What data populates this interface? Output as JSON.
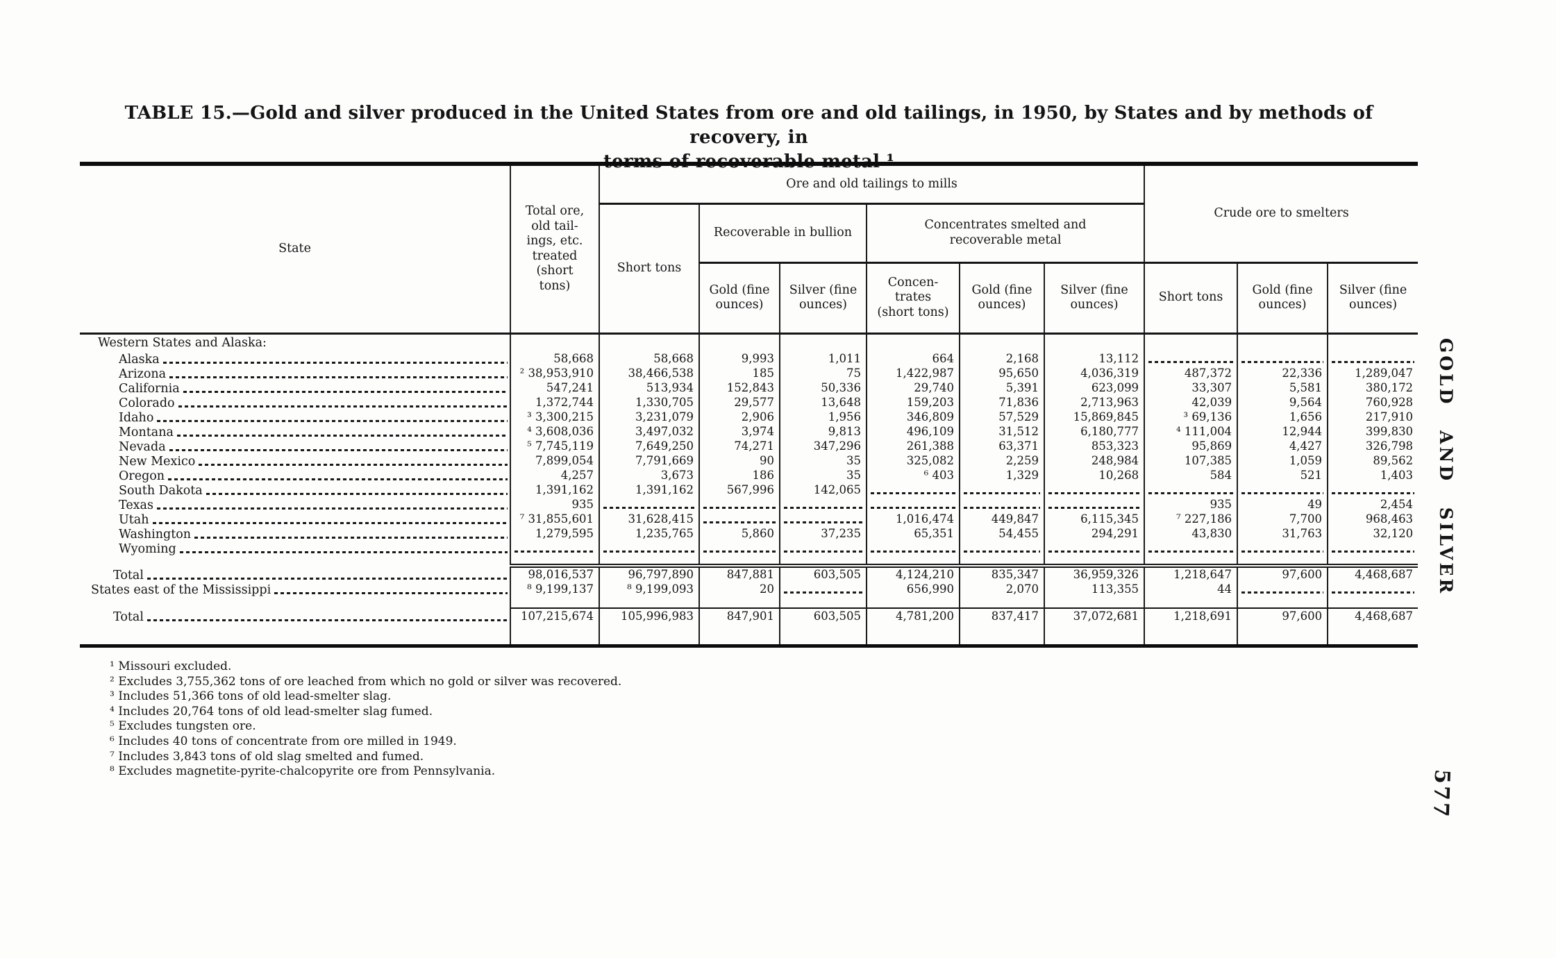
{
  "document": {
    "title_line1": "TABLE 15.—Gold and silver produced in the United States from ore and old tailings, in 1950, by States and by methods of recovery, in",
    "title_line2": "terms of recoverable metal ¹",
    "side_label": "GOLD AND SILVER",
    "page_number": "577"
  },
  "table": {
    "column_groups": {
      "mills": "Ore and old tailings to mills",
      "bullion": "Recoverable in bullion",
      "concentrates": "Concentrates smelted and\nrecoverable metal",
      "crude": "Crude ore to smelters"
    },
    "columns": {
      "state": "State",
      "total_ore": "Total ore,\nold tail-\nings, etc.\ntreated\n(short\ntons)",
      "mills_short_tons": "Short tons",
      "gold_bullion": "Gold (fine\nounces)",
      "silver_bullion": "Silver (fine\nounces)",
      "concentrates": "Concen-\ntrates\n(short tons)",
      "gold_conc": "Gold (fine\nounces)",
      "silver_conc": "Silver (fine\nounces)",
      "crude_short_tons": "Short tons",
      "gold_crude": "Gold (fine\nounces)",
      "silver_crude": "Silver (fine\nounces)"
    },
    "rows": [
      {
        "type": "section",
        "label": "Western States and Alaska:"
      },
      {
        "type": "state",
        "label": "Alaska",
        "cells": [
          "58,668",
          "58,668",
          "9,993",
          "1,011",
          "664",
          "2,168",
          "13,112",
          "----",
          "----",
          "----"
        ]
      },
      {
        "type": "state",
        "label": "Arizona",
        "cells": [
          "² 38,953,910",
          "38,466,538",
          "185",
          "75",
          "1,422,987",
          "95,650",
          "4,036,319",
          "487,372",
          "22,336",
          "1,289,047"
        ]
      },
      {
        "type": "state",
        "label": "California",
        "cells": [
          "547,241",
          "513,934",
          "152,843",
          "50,336",
          "29,740",
          "5,391",
          "623,099",
          "33,307",
          "5,581",
          "380,172"
        ]
      },
      {
        "type": "state",
        "label": "Colorado",
        "cells": [
          "1,372,744",
          "1,330,705",
          "29,577",
          "13,648",
          "159,203",
          "71,836",
          "2,713,963",
          "42,039",
          "9,564",
          "760,928"
        ]
      },
      {
        "type": "state",
        "label": "Idaho",
        "cells": [
          "³ 3,300,215",
          "3,231,079",
          "2,906",
          "1,956",
          "346,809",
          "57,529",
          "15,869,845",
          "³ 69,136",
          "1,656",
          "217,910"
        ]
      },
      {
        "type": "state",
        "label": "Montana",
        "cells": [
          "⁴ 3,608,036",
          "3,497,032",
          "3,974",
          "9,813",
          "496,109",
          "31,512",
          "6,180,777",
          "⁴ 111,004",
          "12,944",
          "399,830"
        ]
      },
      {
        "type": "state",
        "label": "Nevada",
        "cells": [
          "⁵ 7,745,119",
          "7,649,250",
          "74,271",
          "347,296",
          "261,388",
          "63,371",
          "853,323",
          "95,869",
          "4,427",
          "326,798"
        ]
      },
      {
        "type": "state",
        "label": "New Mexico",
        "cells": [
          "7,899,054",
          "7,791,669",
          "90",
          "35",
          "325,082",
          "2,259",
          "248,984",
          "107,385",
          "1,059",
          "89,562"
        ]
      },
      {
        "type": "state",
        "label": "Oregon",
        "cells": [
          "4,257",
          "3,673",
          "186",
          "35",
          "⁶ 403",
          "1,329",
          "10,268",
          "584",
          "521",
          "1,403"
        ]
      },
      {
        "type": "state",
        "label": "South Dakota",
        "cells": [
          "1,391,162",
          "1,391,162",
          "567,996",
          "142,065",
          "----",
          "----",
          "----",
          "----",
          "----",
          "----"
        ]
      },
      {
        "type": "state",
        "label": "Texas",
        "cells": [
          "935",
          "----",
          "----",
          "----",
          "----",
          "----",
          "----",
          "935",
          "49",
          "2,454"
        ]
      },
      {
        "type": "state",
        "label": "Utah",
        "cells": [
          "⁷ 31,855,601",
          "31,628,415",
          "----",
          "----",
          "1,016,474",
          "449,847",
          "6,115,345",
          "⁷ 227,186",
          "7,700",
          "968,463"
        ]
      },
      {
        "type": "state",
        "label": "Washington",
        "cells": [
          "1,279,595",
          "1,235,765",
          "5,860",
          "37,235",
          "65,351",
          "54,455",
          "294,291",
          "43,830",
          "31,763",
          "32,120"
        ]
      },
      {
        "type": "state",
        "label": "Wyoming",
        "cells": [
          "----",
          "----",
          "----",
          "----",
          "----",
          "----",
          "----",
          "----",
          "----",
          "----"
        ]
      },
      {
        "type": "total",
        "label": "Total",
        "rule_above": "double",
        "cells": [
          "98,016,537",
          "96,797,890",
          "847,881",
          "603,505",
          "4,124,210",
          "835,347",
          "36,959,326",
          "1,218,647",
          "97,600",
          "4,468,687"
        ]
      },
      {
        "type": "east",
        "label": "States east of the Mississippi",
        "cells": [
          "⁸ 9,199,137",
          "⁸ 9,199,093",
          "20",
          "----",
          "656,990",
          "2,070",
          "113,355",
          "44",
          "----",
          "----"
        ]
      },
      {
        "type": "total",
        "label": "Total",
        "rule_above": "single",
        "cells": [
          "107,215,674",
          "105,996,983",
          "847,901",
          "603,505",
          "4,781,200",
          "837,417",
          "37,072,681",
          "1,218,691",
          "97,600",
          "4,468,687"
        ]
      }
    ]
  },
  "footnotes": [
    "¹ Missouri excluded.",
    "² Excludes 3,755,362 tons of ore leached from which no gold or silver was recovered.",
    "³ Includes 51,366 tons of old lead-smelter slag.",
    "⁴ Includes 20,764 tons of old lead-smelter slag fumed.",
    "⁵ Excludes tungsten ore.",
    "⁶ Includes 40 tons of concentrate from ore milled in 1949.",
    "⁷ Includes 3,843 tons of old slag smelted and fumed.",
    "⁸ Excludes magnetite-pyrite-chalcopyrite ore from Pennsylvania."
  ]
}
